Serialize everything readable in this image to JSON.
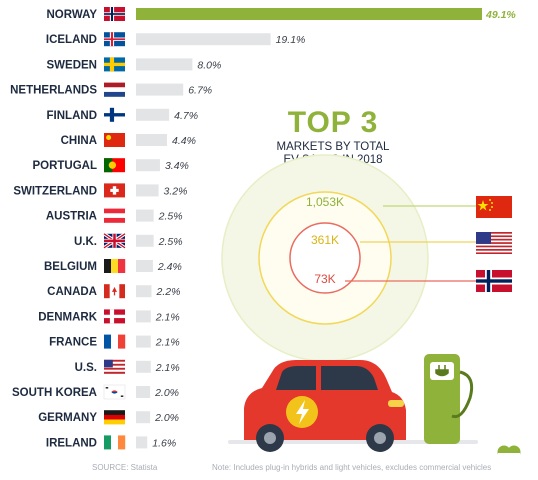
{
  "chart_data": {
    "type": "bar",
    "orientation": "horizontal",
    "categories": [
      "NORWAY",
      "ICELAND",
      "SWEDEN",
      "NETHERLANDS",
      "FINLAND",
      "CHINA",
      "PORTUGAL",
      "SWITZERLAND",
      "AUSTRIA",
      "U.K.",
      "BELGIUM",
      "CANADA",
      "DENMARK",
      "FRANCE",
      "U.S.",
      "SOUTH KOREA",
      "GERMANY",
      "IRELAND"
    ],
    "values": [
      49.1,
      19.1,
      8.0,
      6.7,
      4.7,
      4.4,
      3.4,
      3.2,
      2.5,
      2.5,
      2.4,
      2.2,
      2.1,
      2.1,
      2.1,
      2.0,
      2.0,
      1.6
    ],
    "value_labels": [
      "49.1%",
      "19.1%",
      "8.0%",
      "6.7%",
      "4.7%",
      "4.4%",
      "3.4%",
      "3.2%",
      "2.5%",
      "2.5%",
      "2.4%",
      "2.2%",
      "2.1%",
      "2.1%",
      "2.1%",
      "2.0%",
      "2.0%",
      "1.6%"
    ],
    "flags": [
      "norway",
      "iceland",
      "sweden",
      "netherlands",
      "finland",
      "china",
      "portugal",
      "switzerland",
      "austria",
      "uk",
      "belgium",
      "canada",
      "denmark",
      "france",
      "usa",
      "south-korea",
      "germany",
      "ireland"
    ],
    "xlim": [
      0,
      49.1
    ],
    "grid": false,
    "colors": {
      "highlight": "#8fb23a",
      "bar": "#e3e4e6"
    }
  },
  "top3": {
    "title": "TOP 3",
    "subtitle_lines": [
      "MARKETS BY TOTAL",
      "EV SALES IN 2018"
    ],
    "items": [
      {
        "label": "1,053K",
        "flag": "china",
        "color": "#a8c23c"
      },
      {
        "label": "361K",
        "flag": "usa",
        "color": "#efc81c"
      },
      {
        "label": "73K",
        "flag": "norway",
        "color": "#e8574a"
      }
    ]
  },
  "footer": {
    "source": "SOURCE: Statista",
    "note": "Note: Includes plug-in hybrids and light vehicles, excludes commercial vehicles"
  },
  "icons": [
    "ev-car-icon",
    "charging-station-icon",
    "brand-logo-icon"
  ]
}
